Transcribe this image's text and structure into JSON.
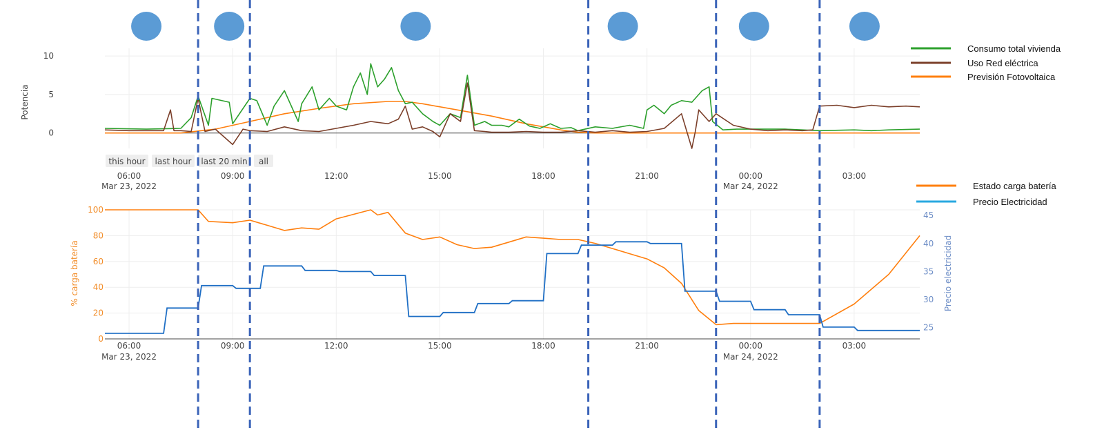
{
  "chart_data": [
    {
      "type": "line",
      "ylabel": "Potencia",
      "ylim": [
        -2,
        11
      ],
      "yticks": [
        "0",
        "5",
        "10"
      ],
      "ytick_values": [
        0,
        5,
        10
      ],
      "xticks": [
        "06:00",
        "09:00",
        "12:00",
        "15:00",
        "18:00",
        "21:00",
        "00:00",
        "03:00"
      ],
      "xtick_hours": [
        6,
        9,
        12,
        15,
        18,
        21,
        24,
        27
      ],
      "xdates": [
        "Mar 23, 2022",
        "Mar 24, 2022"
      ],
      "xlim_hours": [
        5.3,
        28.9
      ],
      "range_selector": [
        "this hour",
        "last hour",
        "last 20 min",
        "all"
      ],
      "series": [
        {
          "name": "Consumo total vivienda",
          "color": "#2ca02c",
          "x": [
            5.3,
            6.5,
            7.5,
            7.8,
            8.0,
            8.3,
            8.4,
            8.9,
            9.0,
            9.5,
            9.7,
            10.0,
            10.2,
            10.5,
            10.9,
            11.0,
            11.3,
            11.5,
            11.8,
            12.0,
            12.3,
            12.5,
            12.7,
            12.9,
            13.0,
            13.2,
            13.4,
            13.6,
            13.8,
            14.0,
            14.2,
            14.5,
            14.8,
            15.0,
            15.3,
            15.6,
            15.8,
            16.0,
            16.3,
            16.5,
            16.8,
            17.0,
            17.3,
            17.6,
            17.9,
            18.2,
            18.5,
            18.8,
            19.0,
            19.5,
            20.0,
            20.5,
            20.9,
            21.0,
            21.2,
            21.5,
            21.7,
            22.0,
            22.3,
            22.6,
            22.8,
            22.9,
            23.2,
            23.6,
            24.0,
            25.0,
            26.0,
            27.0,
            27.5,
            28.0,
            28.9
          ],
          "y": [
            0.6,
            0.5,
            0.6,
            2.0,
            4.8,
            1.0,
            4.5,
            4.0,
            1.2,
            4.5,
            4.2,
            1.0,
            3.5,
            5.5,
            1.5,
            3.8,
            6.0,
            3.0,
            4.5,
            3.5,
            3.0,
            6.0,
            7.8,
            5.0,
            9.0,
            6.0,
            7.0,
            8.5,
            5.5,
            3.8,
            4.0,
            2.5,
            1.5,
            1.0,
            2.5,
            2.0,
            7.5,
            1.0,
            1.5,
            1.0,
            1.0,
            0.8,
            1.8,
            0.9,
            0.6,
            1.2,
            0.6,
            0.7,
            0.3,
            0.8,
            0.6,
            1.0,
            0.6,
            3.0,
            3.6,
            2.5,
            3.6,
            4.2,
            4.0,
            5.5,
            6.0,
            1.5,
            0.4,
            0.5,
            0.5,
            0.5,
            0.3,
            0.4,
            0.3,
            0.4,
            0.5
          ]
        },
        {
          "name": "Uso Red eléctrica",
          "color": "#7b3f2a",
          "x": [
            5.3,
            6.0,
            7.0,
            7.2,
            7.3,
            7.5,
            7.8,
            8.0,
            8.2,
            8.5,
            9.0,
            9.3,
            9.5,
            10.0,
            10.5,
            11.0,
            11.5,
            12.0,
            12.5,
            13.0,
            13.5,
            13.8,
            14.0,
            14.2,
            14.5,
            14.8,
            15.0,
            15.3,
            15.6,
            15.8,
            16.0,
            16.3,
            16.5,
            17.0,
            17.5,
            18.0,
            18.5,
            19.0,
            19.5,
            20.0,
            20.5,
            21.0,
            21.5,
            22.0,
            22.3,
            22.4,
            22.5,
            22.8,
            23.0,
            23.5,
            24.0,
            24.5,
            25.0,
            25.5,
            25.8,
            26.0,
            26.5,
            27.0,
            27.5,
            28.0,
            28.5,
            28.9
          ],
          "y": [
            0.4,
            0.3,
            0.3,
            3.0,
            0.3,
            0.3,
            0.2,
            4.5,
            0.2,
            0.5,
            -1.5,
            0.5,
            0.3,
            0.2,
            0.8,
            0.3,
            0.2,
            0.6,
            1.0,
            1.5,
            1.2,
            1.8,
            3.5,
            0.5,
            0.8,
            0.2,
            -0.5,
            2.5,
            1.5,
            6.5,
            0.3,
            0.2,
            0.1,
            0.1,
            0.2,
            0.1,
            0.1,
            0.3,
            0.1,
            0.3,
            0.1,
            0.2,
            0.6,
            2.5,
            -2.0,
            0.2,
            3.0,
            1.5,
            2.5,
            1.0,
            0.5,
            0.3,
            0.4,
            0.3,
            0.4,
            3.5,
            3.6,
            3.3,
            3.6,
            3.4,
            3.5,
            3.4
          ]
        },
        {
          "name": "Previsión Fotovoltaica",
          "color": "#ff7f0e",
          "x": [
            5.3,
            7.5,
            8.5,
            9.5,
            10.5,
            11.5,
            12.5,
            13.5,
            14.0,
            14.5,
            15.5,
            16.5,
            17.5,
            18.5,
            19.0,
            19.5,
            21.0,
            24.0,
            28.9
          ],
          "y": [
            0,
            0,
            0.5,
            1.5,
            2.5,
            3.2,
            3.8,
            4.1,
            4.1,
            3.8,
            3.0,
            2.2,
            1.2,
            0.4,
            0.1,
            0,
            0,
            0,
            0
          ]
        }
      ]
    },
    {
      "type": "line",
      "ylabel": "% carga batería",
      "ylabel_right": "Precio electricidad",
      "ylim": [
        0,
        100
      ],
      "ylim_right": [
        23,
        46
      ],
      "yticks": [
        "0",
        "20",
        "40",
        "60",
        "80",
        "100"
      ],
      "ytick_values": [
        0,
        20,
        40,
        60,
        80,
        100
      ],
      "yticks_right": [
        "25",
        "30",
        "35",
        "40",
        "45"
      ],
      "ytick_values_right": [
        25,
        30,
        35,
        40,
        45
      ],
      "xticks": [
        "06:00",
        "09:00",
        "12:00",
        "15:00",
        "18:00",
        "21:00",
        "00:00",
        "03:00"
      ],
      "xtick_hours": [
        6,
        9,
        12,
        15,
        18,
        21,
        24,
        27
      ],
      "xdates": [
        "Mar 23, 2022",
        "Mar 24, 2022"
      ],
      "xlim_hours": [
        5.3,
        28.9
      ],
      "series": [
        {
          "name": "Estado carga batería",
          "color": "#ff7f0e",
          "x": [
            5.3,
            8.0,
            8.3,
            9.0,
            9.5,
            10.0,
            10.5,
            11.0,
            11.5,
            12.0,
            13.0,
            13.2,
            13.5,
            14.0,
            14.5,
            15.0,
            15.5,
            16.0,
            16.5,
            17.0,
            17.5,
            18.0,
            18.5,
            19.0,
            19.5,
            20.0,
            20.5,
            21.0,
            21.5,
            22.0,
            22.5,
            23.0,
            23.5,
            24.0,
            25.0,
            26.0,
            27.0,
            28.0,
            28.9
          ],
          "y": [
            100,
            100,
            91,
            90,
            92,
            88,
            84,
            86,
            85,
            93,
            100,
            96,
            98,
            82,
            77,
            79,
            73,
            70,
            71,
            75,
            79,
            78,
            77,
            77,
            74,
            70,
            66,
            62,
            55,
            43,
            22,
            11,
            12,
            12,
            12,
            12,
            27,
            50,
            80
          ]
        },
        {
          "name": "Precio Electricidad",
          "color": "#1f6fc5",
          "x": [
            5.3,
            6.0,
            7.0,
            7.1,
            8.0,
            8.1,
            9.0,
            9.1,
            9.8,
            9.9,
            10.0,
            11.0,
            11.1,
            12.0,
            12.1,
            13.0,
            13.1,
            14.0,
            14.1,
            15.0,
            15.1,
            16.0,
            16.1,
            17.0,
            17.1,
            18.0,
            18.1,
            19.0,
            19.1,
            20.0,
            20.1,
            21.0,
            21.1,
            22.0,
            22.1,
            23.0,
            23.1,
            24.0,
            24.1,
            25.0,
            25.1,
            26.0,
            26.1,
            27.0,
            27.1,
            28.0,
            28.9
          ],
          "y": [
            24,
            24,
            24,
            28.5,
            28.5,
            32.5,
            32.5,
            32,
            32,
            36,
            36,
            36,
            35.2,
            35.2,
            35,
            35,
            34.3,
            34.3,
            27,
            27,
            27.7,
            27.7,
            29.3,
            29.3,
            29.8,
            29.8,
            38.2,
            38.2,
            39.7,
            39.7,
            40.3,
            40.3,
            40,
            40,
            31.5,
            31.5,
            29.7,
            29.7,
            28.2,
            28.2,
            27.3,
            27.3,
            25.1,
            25.1,
            24.5,
            24.5,
            24.5
          ]
        }
      ]
    }
  ],
  "overlay": {
    "marker_color": "#5b9bd5",
    "divider_color": "#3a63b8",
    "divider_hours": [
      8.0,
      9.5,
      19.3,
      23.0,
      26.0
    ],
    "marker_hours": [
      6.5,
      8.9,
      14.3,
      20.3,
      24.1,
      27.3
    ]
  }
}
